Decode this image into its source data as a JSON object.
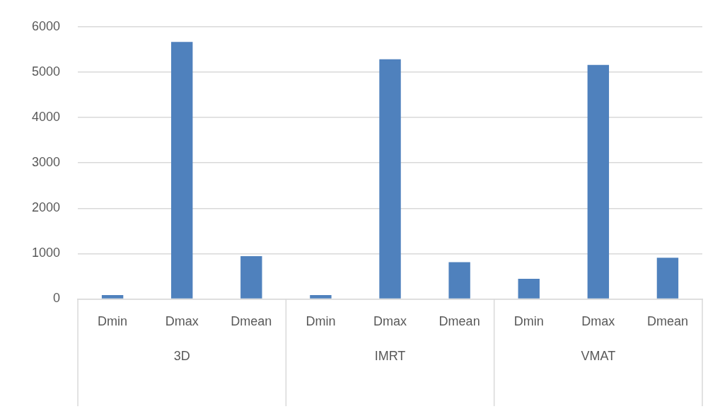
{
  "chart_data": {
    "type": "bar",
    "categories": [
      "Dmin",
      "Dmax",
      "Dmean",
      "Dmin",
      "Dmax",
      "Dmean",
      "Dmin",
      "Dmax",
      "Dmean"
    ],
    "values": [
      85,
      5670,
      943,
      85,
      5285,
      812,
      443,
      5160,
      906
    ],
    "color": "#4f81bd",
    "annotations": [
      "3D",
      "IMRT",
      "VMAT"
    ],
    "ylim": [
      0,
      6000
    ],
    "yticks": [
      0,
      1000,
      2000,
      3000,
      4000,
      5000,
      6000
    ],
    "grid": "y",
    "legend": false
  }
}
